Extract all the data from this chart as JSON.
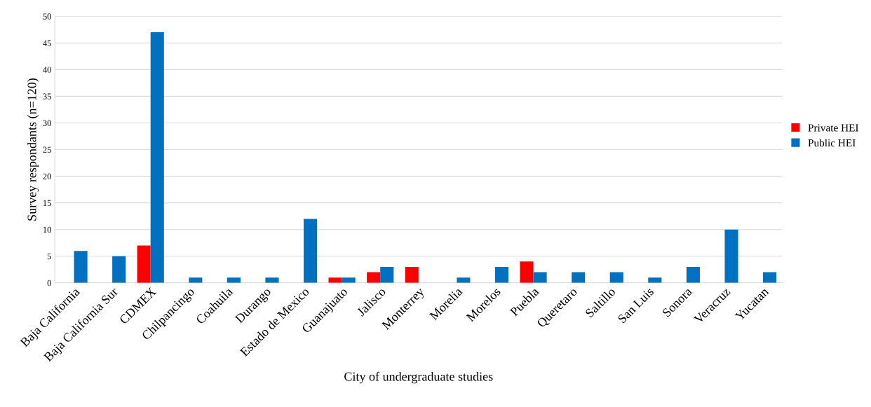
{
  "chart_data": {
    "type": "bar",
    "xlabel": "City of undergraduate studies",
    "ylabel": "Survey respondants (n=120)",
    "categories": [
      "Baja California",
      "Baja California Sur",
      "CDMEX",
      "Chilpancingo",
      "Coahuila",
      "Durango",
      "Estado de Mexico",
      "Guanajuato",
      "Jalisco",
      "Monterrey",
      "Morelia",
      "Morelos",
      "Puebla",
      "Queretaro",
      "Saltillo",
      "San Luis",
      "Sonora",
      "Veracruz",
      "Yucatan"
    ],
    "series": [
      {
        "name": "Private HEI",
        "color": "#ff0000",
        "values": [
          null,
          null,
          7,
          null,
          null,
          null,
          null,
          1,
          2,
          3,
          null,
          null,
          4,
          null,
          null,
          null,
          null,
          null,
          null
        ]
      },
      {
        "name": "Public HEI",
        "color": "#0070c0",
        "values": [
          6,
          5,
          47,
          1,
          1,
          1,
          12,
          1,
          3,
          null,
          1,
          3,
          2,
          2,
          2,
          1,
          3,
          10,
          2
        ]
      }
    ],
    "ylim": [
      0,
      50
    ],
    "yticks": [
      0,
      5,
      10,
      15,
      20,
      25,
      30,
      35,
      40,
      45,
      50
    ],
    "grid": "y",
    "legend": "right"
  }
}
